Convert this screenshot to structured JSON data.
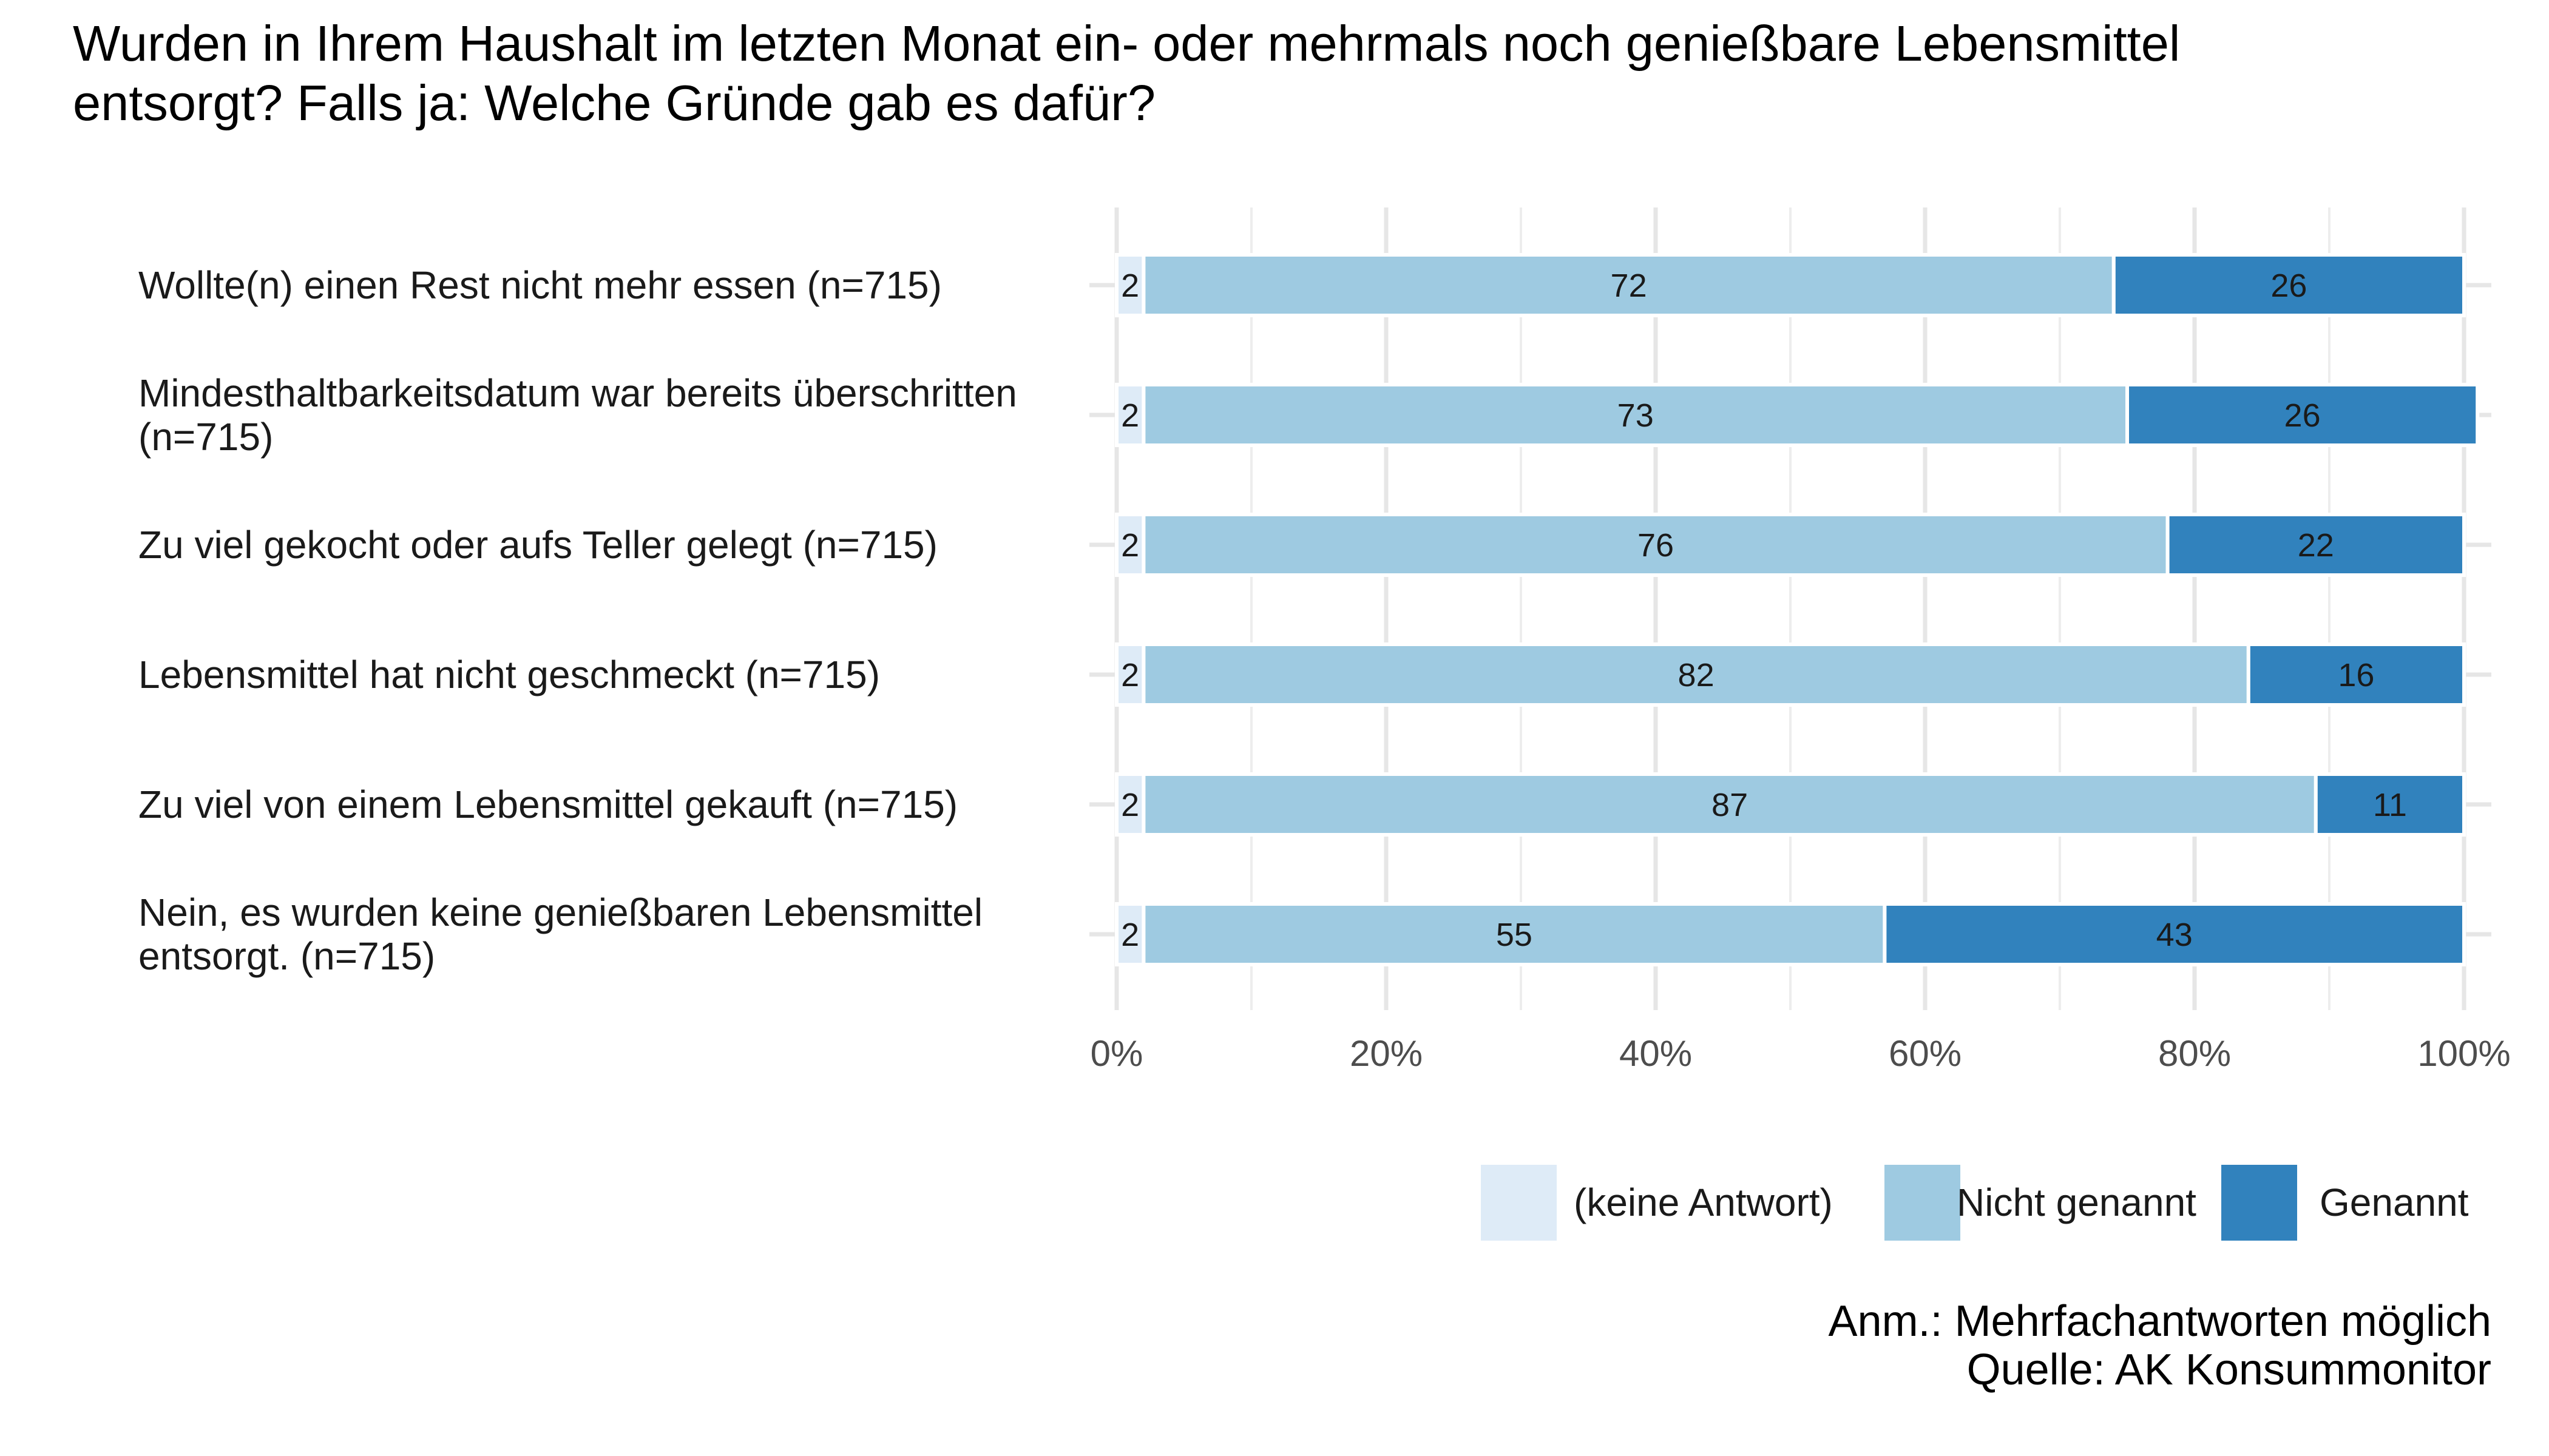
{
  "chart_data": {
    "type": "bar",
    "orientation": "horizontal",
    "stacked": true,
    "title": "Wurden in Ihrem Haushalt im letzten Monat ein- oder mehrmals noch genießbare Lebensmittel entsorgt? Falls ja: Welche Gründe gab es dafür?",
    "title_lines": [
      "Wurden in Ihrem Haushalt im letzten Monat ein- oder mehrmals noch genießbare Lebensmittel",
      "entsorgt? Falls ja: Welche Gründe gab es dafür?"
    ],
    "categories": [
      "Wollte(n) einen Rest nicht mehr essen (n=715)",
      "Mindesthaltbarkeitsdatum war bereits überschritten (n=715)",
      "Zu viel gekocht oder aufs Teller gelegt (n=715)",
      "Lebensmittel hat nicht geschmeckt (n=715)",
      "Zu viel von einem Lebensmittel gekauft (n=715)",
      "Nein, es wurden keine genießbaren Lebensmittel entsorgt. (n=715)"
    ],
    "category_lines": [
      [
        "Wollte(n) einen Rest nicht mehr essen (n=715)"
      ],
      [
        "Mindesthaltbarkeitsdatum war bereits überschritten",
        "(n=715)"
      ],
      [
        "Zu viel gekocht oder aufs Teller gelegt (n=715)"
      ],
      [
        "Lebensmittel hat nicht geschmeckt (n=715)"
      ],
      [
        "Zu viel von einem Lebensmittel gekauft (n=715)"
      ],
      [
        "Nein, es wurden keine genießbaren Lebensmittel",
        "entsorgt. (n=715)"
      ]
    ],
    "series": [
      {
        "name": "(keine Antwort)",
        "color": "#deebf7",
        "values": [
          2,
          2,
          2,
          2,
          2,
          2
        ]
      },
      {
        "name": "Nicht genannt",
        "color": "#9ecae1",
        "values": [
          72,
          73,
          76,
          82,
          87,
          55
        ]
      },
      {
        "name": "Genannt",
        "color": "#3182bd",
        "values": [
          26,
          26,
          22,
          16,
          11,
          43
        ]
      }
    ],
    "xlim": [
      0,
      100
    ],
    "x_ticks": [
      0,
      20,
      40,
      60,
      80,
      100
    ],
    "x_tick_labels": [
      "0%",
      "20%",
      "40%",
      "60%",
      "80%",
      "100%"
    ],
    "grid": true,
    "legend_position": "bottom-right",
    "notes": [
      "Anm.: Mehrfachantworten möglich",
      "Quelle: AK Konsummonitor"
    ]
  }
}
